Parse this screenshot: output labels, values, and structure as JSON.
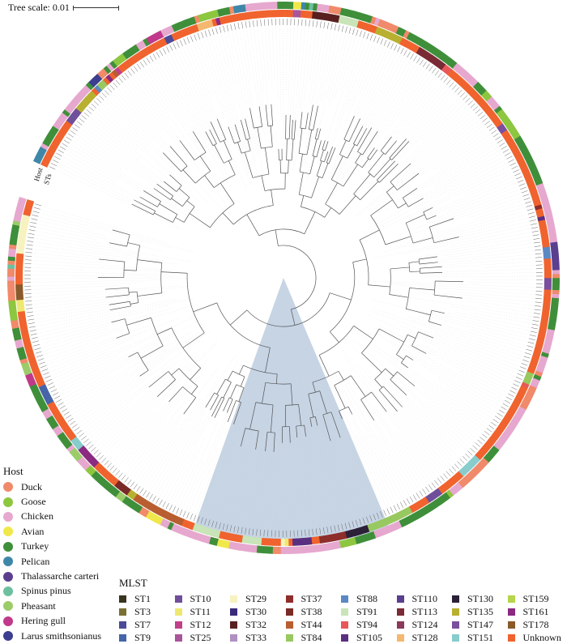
{
  "tree_scale": {
    "label": "Tree scale: 0.01"
  },
  "ring_labels": {
    "host": "Host",
    "sts": "STs"
  },
  "host_legend": {
    "title": "Host",
    "items": [
      {
        "label": "Duck",
        "color": "#f08a6a"
      },
      {
        "label": "Goose",
        "color": "#8dc63f"
      },
      {
        "label": "Chicken",
        "color": "#e6a8cf"
      },
      {
        "label": "Avian",
        "color": "#f0e84a"
      },
      {
        "label": "Turkey",
        "color": "#3f8f3a"
      },
      {
        "label": "Pelican",
        "color": "#3f87a8"
      },
      {
        "label": "Thalassarche carteri",
        "color": "#5b3f8f"
      },
      {
        "label": "Spinus pinus",
        "color": "#6cc0a0"
      },
      {
        "label": "Pheasant",
        "color": "#9ccc6a"
      },
      {
        "label": "Hering gull",
        "color": "#c0398a"
      },
      {
        "label": "Larus smithsonianus",
        "color": "#3c3f8f"
      }
    ]
  },
  "mlst_legend": {
    "title": "MLST",
    "items": [
      {
        "label": "ST1",
        "color": "#3a3320"
      },
      {
        "label": "ST10",
        "color": "#6f4f9a"
      },
      {
        "label": "ST29",
        "color": "#f7f3c0"
      },
      {
        "label": "ST37",
        "color": "#8e2e2a"
      },
      {
        "label": "ST88",
        "color": "#5b88c4"
      },
      {
        "label": "ST110",
        "color": "#5a3f8e"
      },
      {
        "label": "ST130",
        "color": "#2c2038"
      },
      {
        "label": "ST159",
        "color": "#b8d44a"
      },
      {
        "label": "ST3",
        "color": "#7a7030"
      },
      {
        "label": "ST11",
        "color": "#efe870"
      },
      {
        "label": "ST30",
        "color": "#3a2a7a"
      },
      {
        "label": "ST38",
        "color": "#7a2a26"
      },
      {
        "label": "ST91",
        "color": "#c8e4b8"
      },
      {
        "label": "ST113",
        "color": "#7a2a34"
      },
      {
        "label": "ST135",
        "color": "#b8b030"
      },
      {
        "label": "ST161",
        "color": "#8a2a80"
      },
      {
        "label": "ST7",
        "color": "#4a4a98"
      },
      {
        "label": "ST12",
        "color": "#c0408a"
      },
      {
        "label": "ST32",
        "color": "#5a2020"
      },
      {
        "label": "ST44",
        "color": "#b85e30"
      },
      {
        "label": "ST94",
        "color": "#e85858"
      },
      {
        "label": "ST124",
        "color": "#8a3a5a"
      },
      {
        "label": "ST147",
        "color": "#7a4f9e"
      },
      {
        "label": "ST178",
        "color": "#8a5a2a"
      },
      {
        "label": "ST9",
        "color": "#4565a8"
      },
      {
        "label": "ST25",
        "color": "#a8559a"
      },
      {
        "label": "ST33",
        "color": "#b090c0"
      },
      {
        "label": "ST84",
        "color": "#98c860"
      },
      {
        "label": "ST105",
        "color": "#5a2f80"
      },
      {
        "label": "ST128",
        "color": "#f5b870"
      },
      {
        "label": "ST151",
        "color": "#88cccc"
      },
      {
        "label": "Unknown",
        "color": "#f0632e"
      }
    ]
  },
  "highlight_clade_color": "#c6d4e4"
}
